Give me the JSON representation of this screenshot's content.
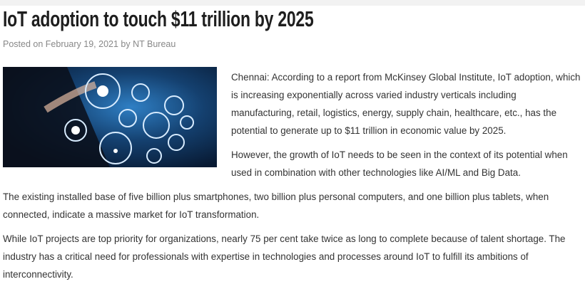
{
  "article": {
    "title": "IoT adoption to touch $11 trillion by 2025",
    "meta": {
      "prefix": "Posted on",
      "date": "February 19, 2021",
      "by": "by",
      "author": "NT Bureau"
    },
    "paragraphs": [
      "Chennai: According to a report from McKinsey Global Institute, IoT adoption, which is increasing exponentially across varied industry verticals including manufacturing, retail, logistics, energy, supply chain, healthcare, etc., has the potential to generate up to $11 trillion in economic value by 2025.",
      "However, the growth of IoT needs to be seen in the context of its potential when used in combination with other technologies like AI/ML and Big Data.",
      "The existing installed base of five billion plus smartphones, two billion plus personal computers, and one billion plus tablets, when connected, indicate a massive market for IoT transformation.",
      "While IoT projects are top priority for organizations, nearly 75 per cent take twice as long to complete because of talent shortage. The industry has a critical need for professionals with expertise in technologies and processes around IoT to fulfill its ambitions of interconnectivity."
    ]
  }
}
